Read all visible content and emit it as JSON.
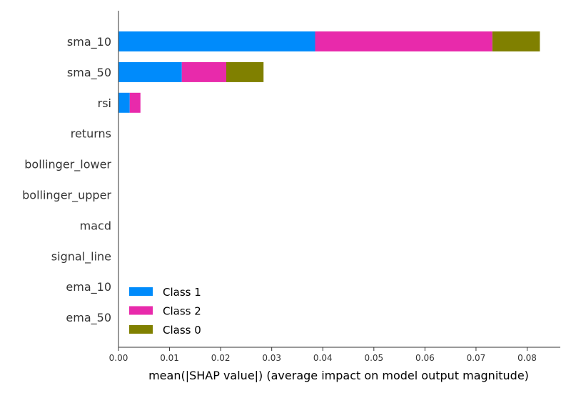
{
  "chart_data": {
    "type": "bar",
    "orientation": "horizontal",
    "stacked": true,
    "categories": [
      "sma_10",
      "sma_50",
      "rsi",
      "returns",
      "bollinger_lower",
      "bollinger_upper",
      "macd",
      "signal_line",
      "ema_10",
      "ema_50"
    ],
    "series": [
      {
        "name": "Class 1",
        "color": "#008bfb",
        "values": [
          0.0385,
          0.0124,
          0.0022,
          0,
          0,
          0,
          0,
          0,
          0,
          0
        ]
      },
      {
        "name": "Class 2",
        "color": "#e82aab",
        "values": [
          0.0347,
          0.0087,
          0.0021,
          0,
          0,
          0,
          0,
          0,
          0,
          0
        ]
      },
      {
        "name": "Class 0",
        "color": "#808000",
        "values": [
          0.0093,
          0.0073,
          0,
          0,
          0,
          0,
          0,
          0,
          0,
          0
        ]
      }
    ],
    "xlabel": "mean(|SHAP value|) (average impact on model output magnitude)",
    "xlim": [
      0,
      0.0865
    ],
    "xticks": [
      "0.00",
      "0.01",
      "0.02",
      "0.03",
      "0.04",
      "0.05",
      "0.06",
      "0.07",
      "0.08"
    ],
    "legend": [
      "Class 1",
      "Class 2",
      "Class 0"
    ],
    "legend_position": "lower-left",
    "grid": false
  }
}
